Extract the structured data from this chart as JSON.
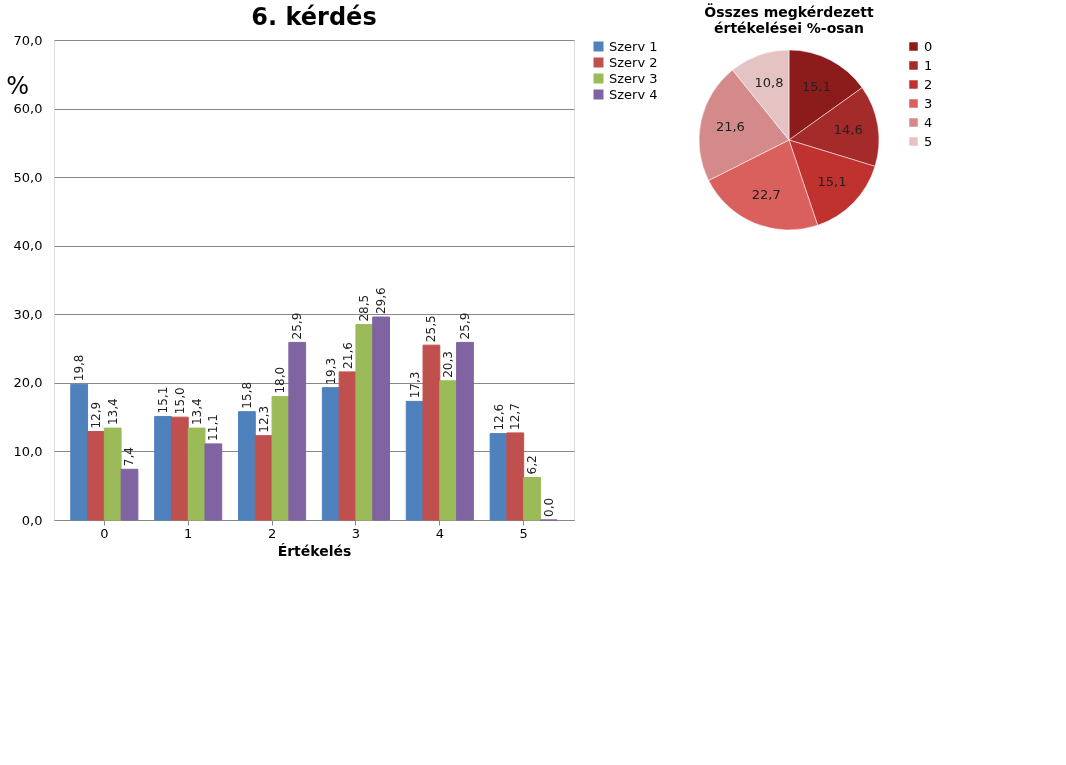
{
  "chart_data": [
    {
      "type": "bar",
      "title": "6. kérdés",
      "xlabel": "Értékelés",
      "ylabel": "%",
      "categories": [
        "0",
        "1",
        "2",
        "3",
        "4",
        "5"
      ],
      "series": [
        {
          "name": "Szerv 1",
          "color": "#4f81bd",
          "values": [
            19.8,
            15.1,
            15.8,
            19.3,
            17.3,
            12.6
          ],
          "value_labels": [
            "19,8",
            "15,1",
            "15,8",
            "19,3",
            "17,3",
            "12,6"
          ]
        },
        {
          "name": "Szerv 2",
          "color": "#c0504d",
          "values": [
            12.9,
            15.0,
            12.3,
            21.6,
            25.5,
            12.7
          ],
          "value_labels": [
            "12,9",
            "15,0",
            "12,3",
            "21,6",
            "25,5",
            "12,7"
          ]
        },
        {
          "name": "Szerv 3",
          "color": "#9bbb59",
          "values": [
            13.4,
            13.4,
            18.0,
            28.5,
            20.3,
            6.2
          ],
          "value_labels": [
            "13,4",
            "13,4",
            "18,0",
            "28,5",
            "20,3",
            "6,2"
          ]
        },
        {
          "name": "Szerv 4",
          "color": "#8064a2",
          "values": [
            7.4,
            11.1,
            25.9,
            29.6,
            25.9,
            0.0
          ],
          "value_labels": [
            "7,4",
            "11,1",
            "25,9",
            "29,6",
            "25,9",
            "0,0"
          ]
        }
      ],
      "ylim": [
        0,
        70
      ],
      "yticks": [
        {
          "value": 0,
          "label": "0,0"
        },
        {
          "value": 10,
          "label": "10,0"
        },
        {
          "value": 20,
          "label": "20,0"
        },
        {
          "value": 30,
          "label": "30,0"
        },
        {
          "value": 40,
          "label": "40,0"
        },
        {
          "value": 50,
          "label": "50,0"
        },
        {
          "value": 60,
          "label": "60,0"
        },
        {
          "value": 70,
          "label": "70,0"
        }
      ],
      "grid": "y",
      "legend": "right"
    },
    {
      "type": "pie",
      "title": "Összes megkérdezett\nértékelései %-osan",
      "categories": [
        "0",
        "1",
        "2",
        "3",
        "4",
        "5"
      ],
      "values": [
        15.1,
        14.6,
        15.1,
        22.7,
        21.6,
        10.8
      ],
      "value_labels": [
        "15,1",
        "14,6",
        "15,1",
        "22,7",
        "21,6",
        "10,8"
      ],
      "colors": [
        "#8c1c1c",
        "#a52a2a",
        "#c0322f",
        "#d9605c",
        "#d48a8a",
        "#e6c3c3"
      ],
      "legend": "right"
    }
  ]
}
